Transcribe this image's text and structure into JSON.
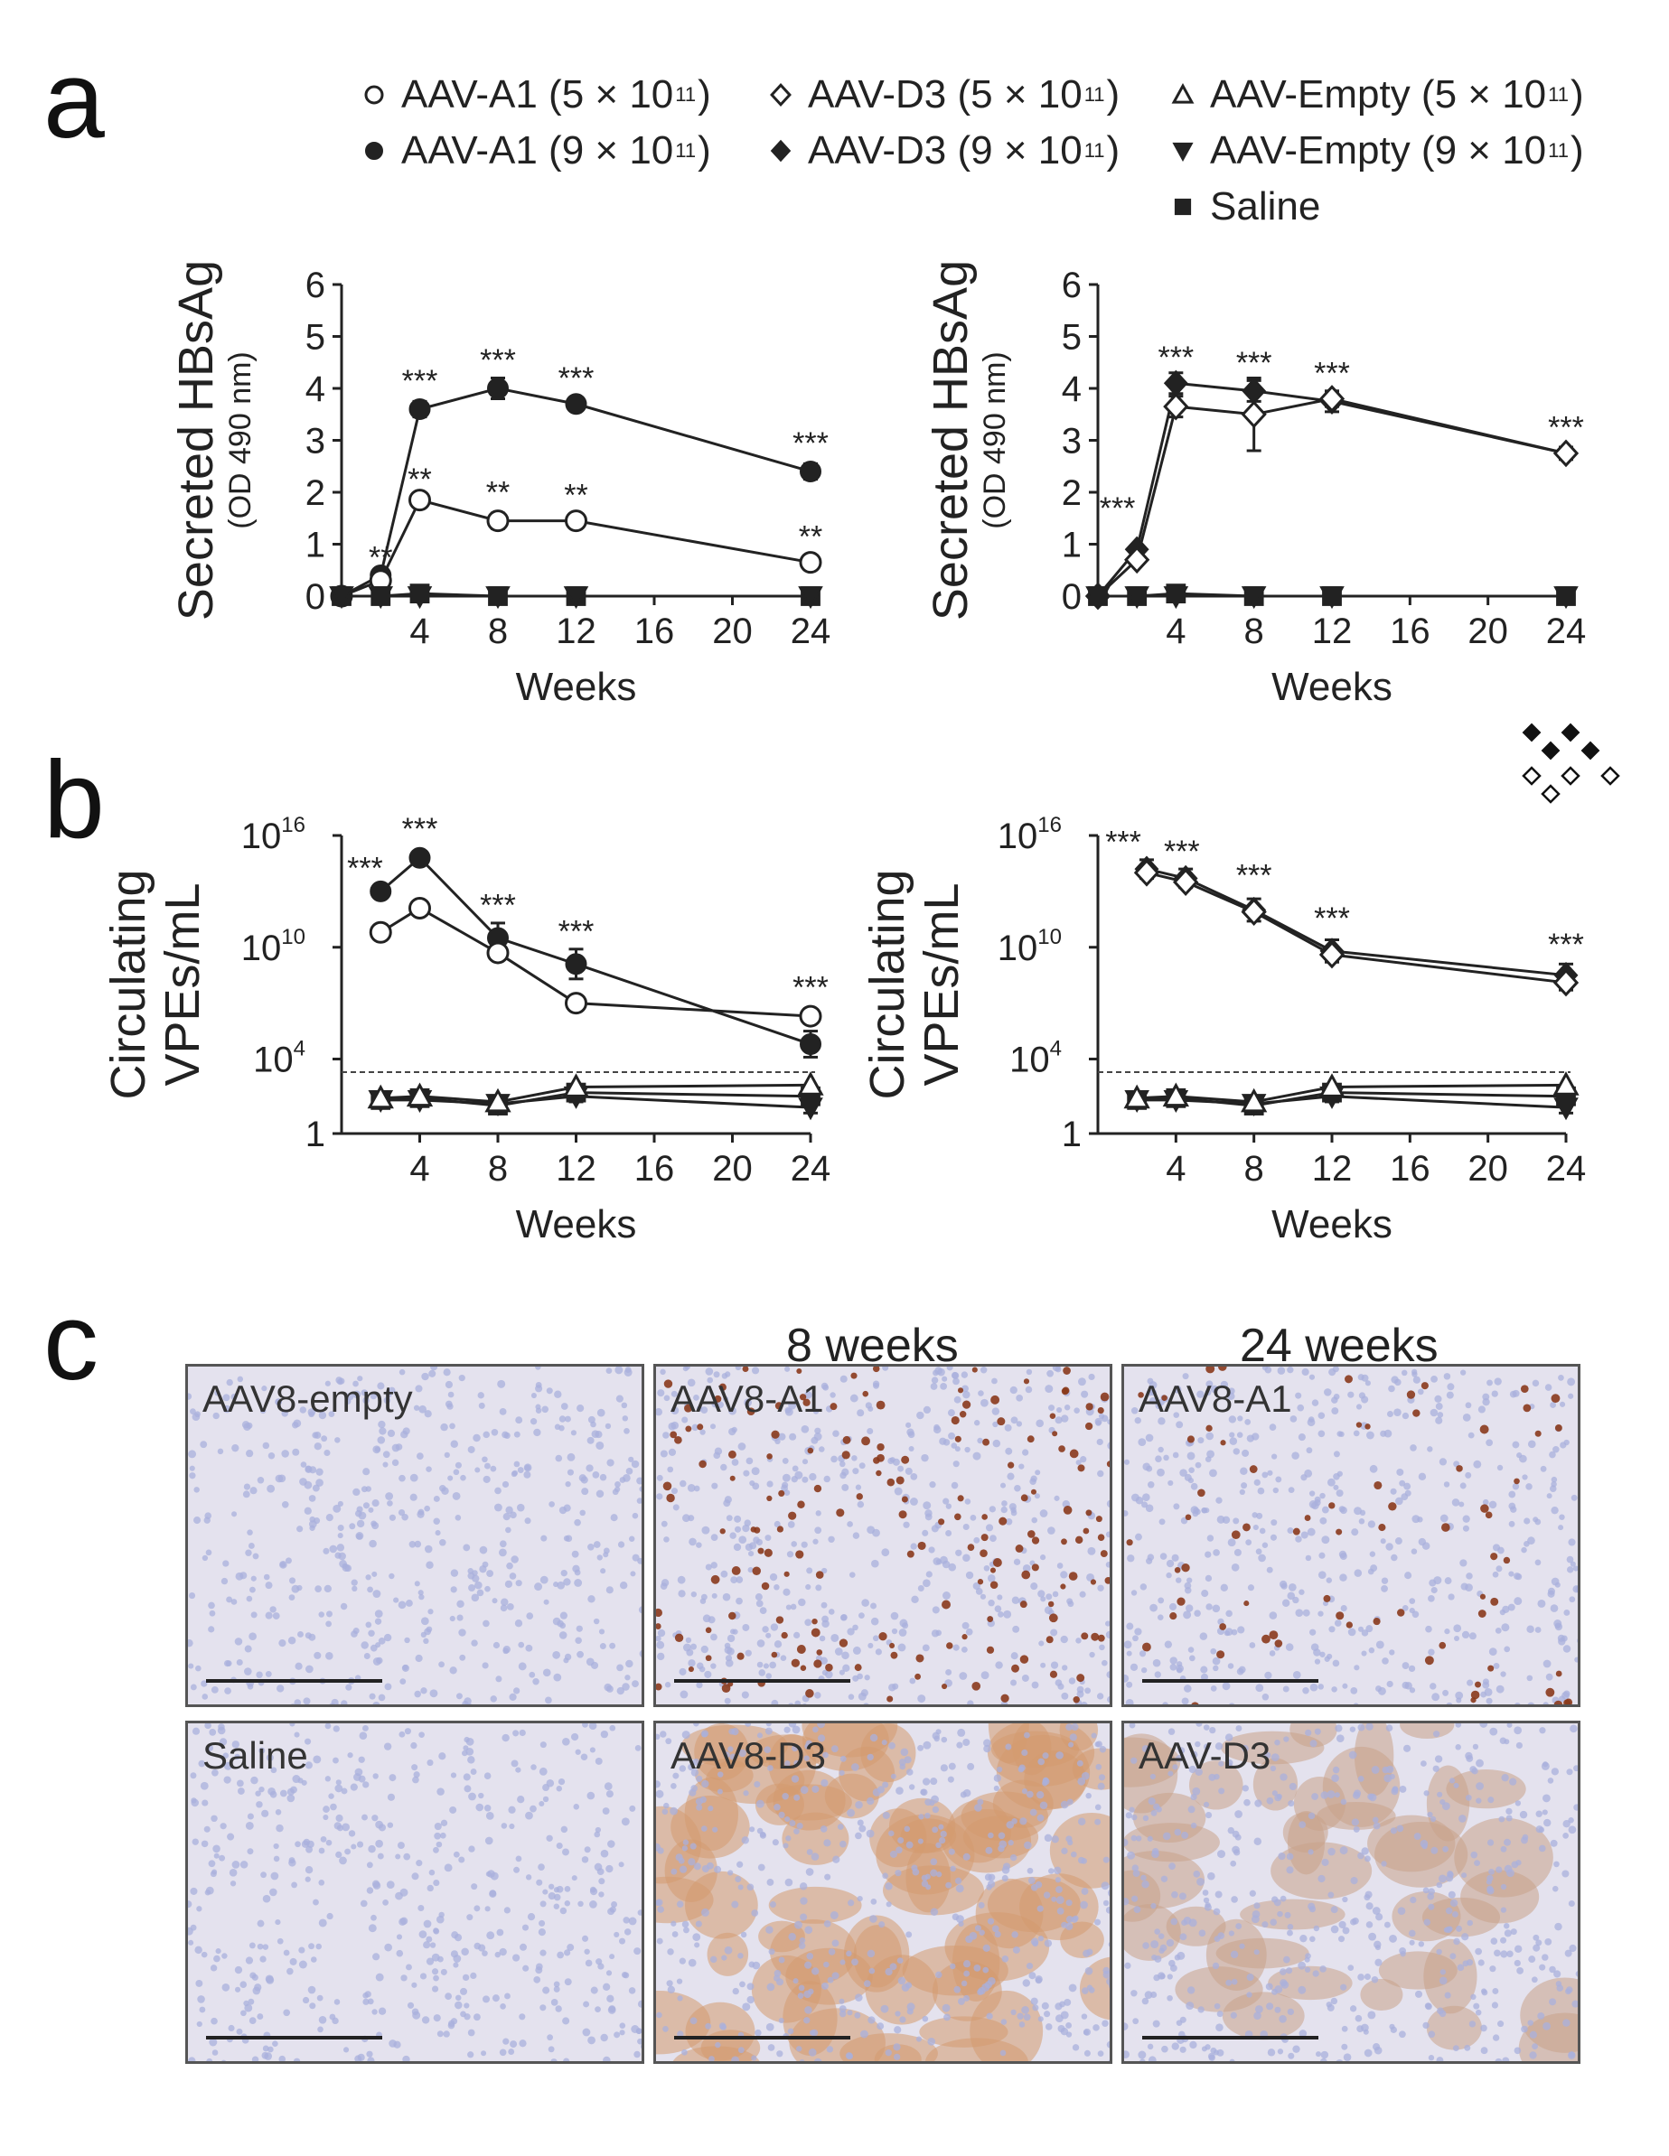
{
  "panels": {
    "a": "a",
    "b": "b",
    "c": "c"
  },
  "legend": {
    "items": [
      {
        "key": "a1_low",
        "prefix": "AAV-A1 (5 × 10",
        "exp": "11",
        "suffix": ")",
        "marker": "circle",
        "fill": "open"
      },
      {
        "key": "d3_low",
        "prefix": "AAV-D3 (5 × 10",
        "exp": "11",
        "suffix": ")",
        "marker": "diamond",
        "fill": "open"
      },
      {
        "key": "empty_low",
        "prefix": "AAV-Empty (5 × 10",
        "exp": "11",
        "suffix": ")",
        "marker": "triangle-up",
        "fill": "open"
      },
      {
        "key": "a1_high",
        "prefix": "AAV-A1 (9 × 10",
        "exp": "11",
        "suffix": ")",
        "marker": "circle",
        "fill": "filled"
      },
      {
        "key": "d3_high",
        "prefix": "AAV-D3 (9 × 10",
        "exp": "11",
        "suffix": ")",
        "marker": "diamond",
        "fill": "filled"
      },
      {
        "key": "empty_high",
        "prefix": "AAV-Empty (9 × 10",
        "exp": "11",
        "suffix": ")",
        "marker": "triangle-down",
        "fill": "filled"
      },
      {
        "key": "saline",
        "prefix": "Saline",
        "exp": "",
        "suffix": "",
        "marker": "square",
        "fill": "filled"
      }
    ]
  },
  "colors": {
    "line": "#222222",
    "marker_open_fill": "#ffffff",
    "dashed_threshold": "#444444"
  },
  "chart_data": [
    {
      "id": "a-left",
      "type": "line",
      "panel": "a",
      "ylabel": "Secreted HBsAg",
      "ylabel_sub": "(OD 490 nm)",
      "xlabel": "Weeks",
      "xlim": [
        0,
        24
      ],
      "ylim": [
        0,
        6
      ],
      "xticks": [
        "4",
        "8",
        "12",
        "16",
        "20",
        "24"
      ],
      "xtick_values": [
        4,
        8,
        12,
        16,
        20,
        24
      ],
      "yticks": [
        "0",
        "1",
        "2",
        "3",
        "4",
        "5",
        "6"
      ],
      "ytick_values": [
        0,
        1,
        2,
        3,
        4,
        5,
        6
      ],
      "yscale": "linear",
      "series": [
        {
          "key": "a1_high",
          "marker": "circle",
          "fill": "filled",
          "x": [
            0,
            2,
            4,
            8,
            12,
            24
          ],
          "y": [
            0,
            0.4,
            3.6,
            4.0,
            3.7,
            2.4
          ],
          "err": [
            0,
            0.05,
            0.15,
            0.2,
            0.12,
            0.15
          ]
        },
        {
          "key": "a1_low",
          "marker": "circle",
          "fill": "open",
          "x": [
            0,
            2,
            4,
            8,
            12,
            24
          ],
          "y": [
            0,
            0.3,
            1.85,
            1.45,
            1.45,
            0.65
          ],
          "err": [
            0,
            0.05,
            0.08,
            0.15,
            0.08,
            0.05
          ]
        },
        {
          "key": "saline",
          "marker": "square",
          "fill": "filled",
          "x": [
            0,
            2,
            4,
            8,
            12,
            24
          ],
          "y": [
            0,
            0,
            0.05,
            0,
            0,
            0
          ],
          "err": [
            0,
            0,
            0.1,
            0,
            0,
            0
          ]
        },
        {
          "key": "empty_high",
          "marker": "triangle-down",
          "fill": "filled",
          "x": [
            0,
            2,
            4,
            8,
            12,
            24
          ],
          "y": [
            0,
            0,
            0,
            0,
            0,
            0
          ],
          "err": [
            0,
            0,
            0,
            0,
            0,
            0
          ]
        }
      ],
      "annotations": [
        {
          "x": 2,
          "y": 0.55,
          "text": "**"
        },
        {
          "x": 4,
          "y": 3.95,
          "text": "***"
        },
        {
          "x": 4,
          "y": 2.05,
          "text": "**"
        },
        {
          "x": 8,
          "y": 4.35,
          "text": "***"
        },
        {
          "x": 8,
          "y": 1.8,
          "text": "**"
        },
        {
          "x": 12,
          "y": 4.0,
          "text": "***"
        },
        {
          "x": 12,
          "y": 1.75,
          "text": "**"
        },
        {
          "x": 24,
          "y": 2.75,
          "text": "***"
        },
        {
          "x": 24,
          "y": 0.95,
          "text": "**"
        }
      ]
    },
    {
      "id": "a-right",
      "type": "line",
      "panel": "a",
      "ylabel": "Secreted HBsAg",
      "ylabel_sub": "(OD 490 nm)",
      "xlabel": "Weeks",
      "xlim": [
        0,
        24
      ],
      "ylim": [
        0,
        6
      ],
      "xticks": [
        "4",
        "8",
        "12",
        "16",
        "20",
        "24"
      ],
      "xtick_values": [
        4,
        8,
        12,
        16,
        20,
        24
      ],
      "yticks": [
        "0",
        "1",
        "2",
        "3",
        "4",
        "5",
        "6"
      ],
      "ytick_values": [
        0,
        1,
        2,
        3,
        4,
        5,
        6
      ],
      "yscale": "linear",
      "series": [
        {
          "key": "d3_high",
          "marker": "diamond",
          "fill": "filled",
          "x": [
            0,
            2,
            4,
            8,
            12,
            24
          ],
          "y": [
            0,
            0.9,
            4.1,
            3.95,
            3.75,
            2.75
          ],
          "err": [
            0,
            0.05,
            0.2,
            0.2,
            0.2,
            0.12
          ]
        },
        {
          "key": "d3_low",
          "marker": "diamond",
          "fill": "open",
          "x": [
            0,
            2,
            4,
            8,
            12,
            24
          ],
          "y": [
            0,
            0.7,
            3.65,
            3.5,
            3.8,
            2.75
          ],
          "err": [
            0,
            0.05,
            0.2,
            0.7,
            0.15,
            0.1
          ]
        },
        {
          "key": "saline",
          "marker": "square",
          "fill": "filled",
          "x": [
            0,
            2,
            4,
            8,
            12,
            24
          ],
          "y": [
            0,
            0,
            0.05,
            0,
            0,
            0
          ],
          "err": [
            0,
            0,
            0.1,
            0,
            0,
            0
          ]
        },
        {
          "key": "empty_high",
          "marker": "triangle-down",
          "fill": "filled",
          "x": [
            0,
            2,
            4,
            8,
            12,
            24
          ],
          "y": [
            0,
            0,
            0,
            0,
            0,
            0
          ],
          "err": [
            0,
            0,
            0,
            0,
            0,
            0
          ]
        }
      ],
      "annotations": [
        {
          "x": 1,
          "y": 1.5,
          "text": "***"
        },
        {
          "x": 4,
          "y": 4.4,
          "text": "***"
        },
        {
          "x": 8,
          "y": 4.3,
          "text": "***"
        },
        {
          "x": 12,
          "y": 4.1,
          "text": "***"
        },
        {
          "x": 24,
          "y": 3.05,
          "text": "***"
        }
      ]
    },
    {
      "id": "b-left",
      "type": "line",
      "panel": "b",
      "ylabel": "Circulating",
      "ylabel_sub": "VPEs/mL",
      "xlabel": "Weeks",
      "xlim": [
        0,
        24
      ],
      "ylim": [
        0,
        16
      ],
      "xticks": [
        "4",
        "8",
        "12",
        "16",
        "20",
        "24"
      ],
      "xtick_values": [
        4,
        8,
        12,
        16,
        20,
        24
      ],
      "yticks": [
        "1",
        "10",
        "10",
        "10"
      ],
      "ytick_exponents": [
        "",
        "4",
        "10",
        "16"
      ],
      "ytick_values": [
        0,
        4,
        10,
        16
      ],
      "yscale": "log10",
      "threshold": 3.3,
      "series": [
        {
          "key": "a1_high",
          "marker": "circle",
          "fill": "filled",
          "x": [
            2,
            4,
            8,
            12,
            24
          ],
          "y": [
            13.0,
            14.8,
            10.5,
            9.1,
            4.8
          ],
          "err": [
            0,
            0.3,
            0.8,
            0.8,
            0.7
          ]
        },
        {
          "key": "a1_low",
          "marker": "circle",
          "fill": "open",
          "x": [
            2,
            4,
            8,
            12,
            24
          ],
          "y": [
            10.8,
            12.1,
            9.7,
            7.0,
            6.3
          ],
          "err": [
            0,
            0.3,
            0.3,
            0,
            0
          ]
        },
        {
          "key": "saline",
          "marker": "square",
          "fill": "filled",
          "x": [
            2,
            4,
            8,
            12,
            24
          ],
          "y": [
            1.8,
            1.9,
            1.5,
            2.2,
            2.0
          ],
          "err": [
            0.3,
            0.3,
            0.3,
            0.3,
            0.3
          ]
        },
        {
          "key": "empty_high",
          "marker": "triangle-down",
          "fill": "filled",
          "x": [
            2,
            4,
            8,
            12,
            24
          ],
          "y": [
            1.8,
            1.8,
            1.6,
            2.0,
            1.4
          ],
          "err": [
            0.2,
            0.3,
            0.3,
            0.3,
            0.3
          ]
        },
        {
          "key": "empty_low",
          "marker": "triangle-up",
          "fill": "open",
          "x": [
            2,
            4,
            8,
            12,
            24
          ],
          "y": [
            1.9,
            2.0,
            1.7,
            2.5,
            2.6
          ],
          "err": [
            0,
            0,
            0,
            0,
            0
          ]
        }
      ],
      "annotations": [
        {
          "x": 1.2,
          "y": 13.7,
          "text": "***"
        },
        {
          "x": 4,
          "y": 15.8,
          "text": "***"
        },
        {
          "x": 8,
          "y": 11.7,
          "text": "***"
        },
        {
          "x": 12,
          "y": 10.3,
          "text": "***"
        },
        {
          "x": 24,
          "y": 7.3,
          "text": "***"
        }
      ]
    },
    {
      "id": "b-right",
      "type": "line",
      "panel": "b",
      "ylabel": "Circulating",
      "ylabel_sub": "VPEs/mL",
      "xlabel": "Weeks",
      "xlim": [
        0,
        24
      ],
      "ylim": [
        0,
        16
      ],
      "xticks": [
        "4",
        "8",
        "12",
        "16",
        "20",
        "24"
      ],
      "xtick_values": [
        4,
        8,
        12,
        16,
        20,
        24
      ],
      "yticks": [
        "1",
        "10",
        "10",
        "10"
      ],
      "ytick_exponents": [
        "",
        "4",
        "10",
        "16"
      ],
      "ytick_values": [
        0,
        4,
        10,
        16
      ],
      "yscale": "log10",
      "threshold": 3.3,
      "series": [
        {
          "key": "d3_high",
          "marker": "diamond",
          "fill": "filled",
          "x": [
            2.5,
            4.5,
            8,
            12,
            24
          ],
          "y": [
            14.2,
            13.7,
            12.0,
            9.8,
            8.5
          ],
          "err": [
            0.5,
            0.5,
            0.6,
            0.6,
            0.6
          ]
        },
        {
          "key": "d3_low",
          "marker": "diamond",
          "fill": "open",
          "x": [
            2.5,
            4.5,
            8,
            12,
            24
          ],
          "y": [
            14.0,
            13.5,
            11.9,
            9.6,
            8.1
          ],
          "err": [
            0,
            0,
            0,
            0,
            0.4
          ]
        },
        {
          "key": "saline",
          "marker": "square",
          "fill": "filled",
          "x": [
            2,
            4,
            8,
            12,
            24
          ],
          "y": [
            1.8,
            1.9,
            1.5,
            2.2,
            2.0
          ],
          "err": [
            0.3,
            0.3,
            0.3,
            0.3,
            0.3
          ]
        },
        {
          "key": "empty_high",
          "marker": "triangle-down",
          "fill": "filled",
          "x": [
            2,
            4,
            8,
            12,
            24
          ],
          "y": [
            1.8,
            1.8,
            1.6,
            2.0,
            1.4
          ],
          "err": [
            0.2,
            0.3,
            0.3,
            0.3,
            0.3
          ]
        },
        {
          "key": "empty_low",
          "marker": "triangle-up",
          "fill": "open",
          "x": [
            2,
            4,
            8,
            12,
            24
          ],
          "y": [
            1.9,
            2.0,
            1.7,
            2.5,
            2.6
          ],
          "err": [
            0,
            0,
            0,
            0,
            0
          ]
        }
      ],
      "annotations": [
        {
          "x": 1.3,
          "y": 15.1,
          "text": "***"
        },
        {
          "x": 4.3,
          "y": 14.6,
          "text": "***"
        },
        {
          "x": 8,
          "y": 13.3,
          "text": "***"
        },
        {
          "x": 12,
          "y": 11.0,
          "text": "***"
        },
        {
          "x": 24,
          "y": 9.6,
          "text": "***"
        }
      ]
    }
  ],
  "histology": {
    "headers": {
      "week8": "8 weeks",
      "week24": "24 weeks"
    },
    "tiles": [
      {
        "label": "AAV8-empty",
        "stain": "none"
      },
      {
        "label": "AAV8-A1",
        "stain": "nuclear-dense"
      },
      {
        "label": "AAV8-A1",
        "stain": "nuclear-sparse"
      },
      {
        "label": "Saline",
        "stain": "none"
      },
      {
        "label": "AAV8-D3",
        "stain": "cytoplasmic-dense"
      },
      {
        "label": "AAV-D3",
        "stain": "cytoplasmic-moderate"
      }
    ]
  }
}
